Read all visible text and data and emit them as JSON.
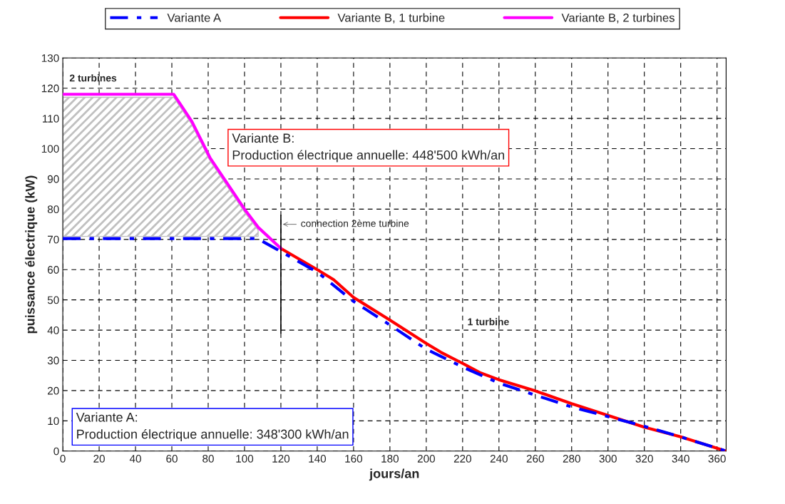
{
  "chart_data": {
    "type": "line",
    "xlabel": "jours/an",
    "ylabel": "puissance électrique (kW)",
    "xlim": [
      0,
      365
    ],
    "xticks": [
      0,
      20,
      40,
      60,
      80,
      100,
      120,
      140,
      160,
      180,
      200,
      220,
      240,
      260,
      280,
      300,
      320,
      340,
      360
    ],
    "ylim": [
      0,
      130
    ],
    "yticks": [
      0,
      10,
      20,
      30,
      40,
      50,
      60,
      70,
      80,
      90,
      100,
      110,
      120,
      130
    ],
    "grid": true,
    "legend": "top",
    "marker": "none",
    "series": [
      {
        "name": "Variante A",
        "color": "#0000ff",
        "line_style": "dashed",
        "x": [
          0,
          107,
          117,
          140,
          160,
          180,
          200,
          220,
          240,
          260,
          280,
          300,
          320,
          340,
          365
        ],
        "values": [
          70.3,
          70.3,
          67,
          59.2,
          49.5,
          41.7,
          33.7,
          27.8,
          22.5,
          18.5,
          14.6,
          11.4,
          8.2,
          4.7,
          0
        ]
      },
      {
        "name": "Variante B, 1 turbine",
        "color": "#ff0000",
        "line_style": "solid",
        "x": [
          120,
          140,
          149,
          160,
          180,
          200,
          208,
          220,
          230,
          240,
          260,
          280,
          300,
          320,
          340,
          365
        ],
        "values": [
          67,
          60,
          56.7,
          50.8,
          43.3,
          35.6,
          32.7,
          29,
          25.8,
          23.6,
          19.9,
          15.7,
          11.8,
          7.9,
          4.7,
          0
        ]
      },
      {
        "name": "Variante B, 2 turbines",
        "color": "#ff00ff",
        "line_style": "solid",
        "x": [
          0,
          61,
          71,
          81,
          100,
          107.5,
          120
        ],
        "values": [
          118,
          118,
          109,
          97,
          80,
          74,
          67
        ],
        "upper": [
          117,
          117,
          108,
          96,
          79,
          73,
          null
        ],
        "lower": [
          71,
          71,
          71,
          71,
          71,
          71,
          null
        ]
      },
      {
        "color": "#000000",
        "line_style": "solid",
        "x": [
          120,
          120
        ],
        "values": [
          39,
          78
        ]
      }
    ],
    "annotations": [
      "2 turbines",
      "1 turbine",
      "Variante B:\nProduction électrique annuelle: 448'500 kWh/an",
      "Variante A:\nProduction électrique annuelle: 348'300 kWh/an",
      {
        "text": "connection 2ème turbine",
        "x": 120,
        "y": 75
      }
    ]
  }
}
